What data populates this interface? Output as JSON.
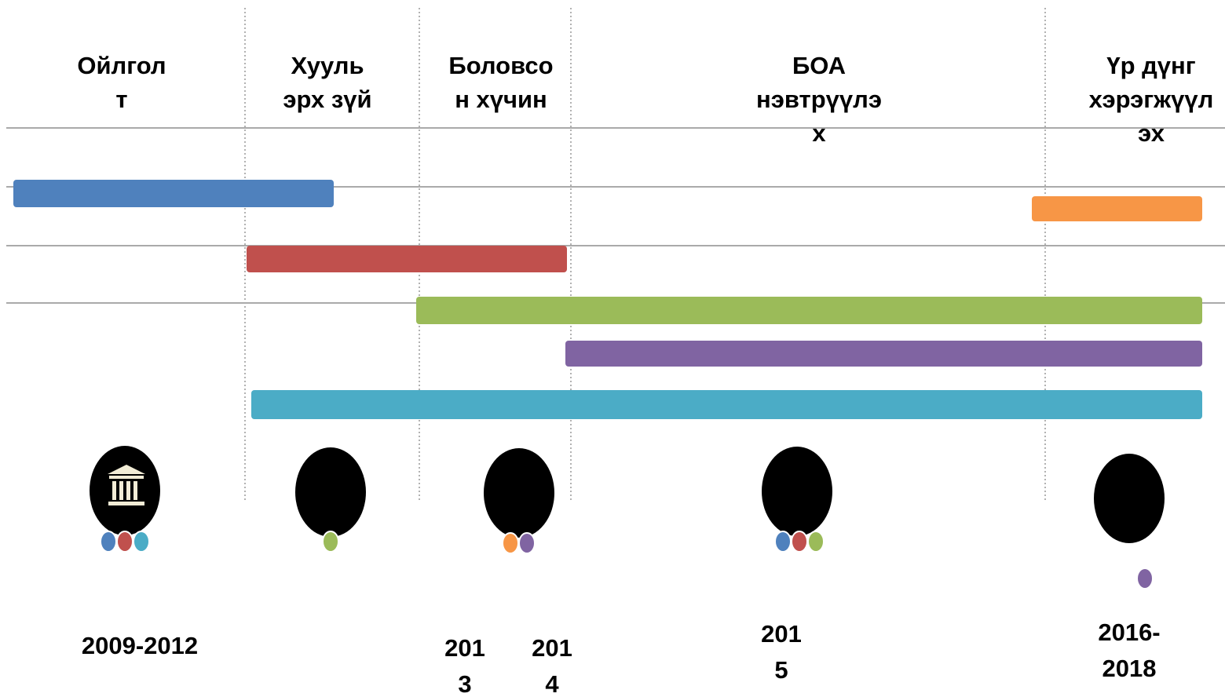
{
  "headers": [
    {
      "lines": [
        "Ойлгол",
        "т"
      ]
    },
    {
      "lines": [
        "Хууль",
        "эрх зүй"
      ]
    },
    {
      "lines": [
        "Боловсо",
        "н хүчин"
      ]
    },
    {
      "lines": [
        "БОА",
        "нэвтрүүлэ",
        "х"
      ]
    },
    {
      "lines": [
        "Үр дүнг",
        "хэрэгжүүл",
        "эх"
      ]
    }
  ],
  "years": [
    {
      "lines": [
        "2009-2012"
      ]
    },
    {
      "lines": [
        "201",
        "3"
      ]
    },
    {
      "lines": [
        "201",
        "4"
      ]
    },
    {
      "lines": [
        "201",
        "5"
      ]
    },
    {
      "lines": [
        "2016-",
        "2018"
      ]
    }
  ]
}
